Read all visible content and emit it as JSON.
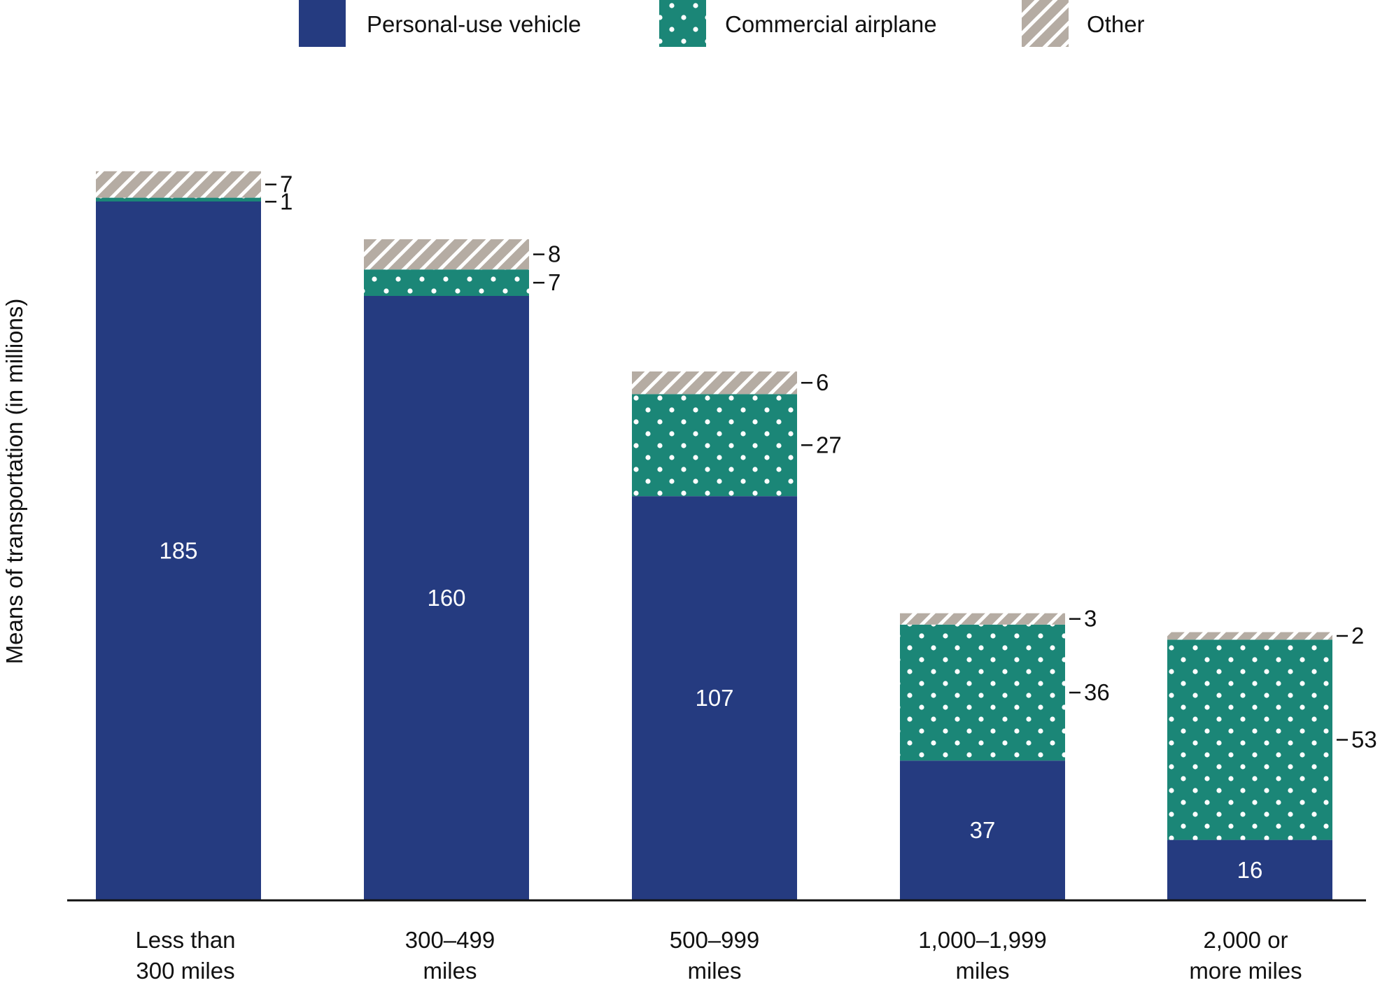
{
  "chart_data": {
    "type": "bar",
    "stacked": true,
    "categories": [
      [
        "Less than",
        "300 miles"
      ],
      [
        "300–499",
        "miles"
      ],
      [
        "500–999",
        "miles"
      ],
      [
        "1,000–1,999",
        "miles"
      ],
      [
        "2,000 or",
        "more miles"
      ]
    ],
    "series": [
      {
        "name": "Personal-use vehicle",
        "values": [
          185,
          160,
          107,
          37,
          16
        ],
        "color": "#253b80",
        "pattern": "solid",
        "label_position": "inside"
      },
      {
        "name": "Commercial airplane",
        "values": [
          1,
          7,
          27,
          36,
          53
        ],
        "color": "#1b8677",
        "pattern": "white-dots",
        "label_position": "outside-right"
      },
      {
        "name": "Other",
        "values": [
          7,
          8,
          6,
          3,
          2
        ],
        "color": "#b5aca3",
        "pattern": "white-diagonal-stripes",
        "label_position": "outside-right"
      }
    ],
    "ylabel": "Means of transportation (in millions)",
    "xlabel": "",
    "y_axis_ticks_shown": false,
    "ylim": [
      0,
      200
    ],
    "grid": false,
    "legend_position": "top-center"
  }
}
